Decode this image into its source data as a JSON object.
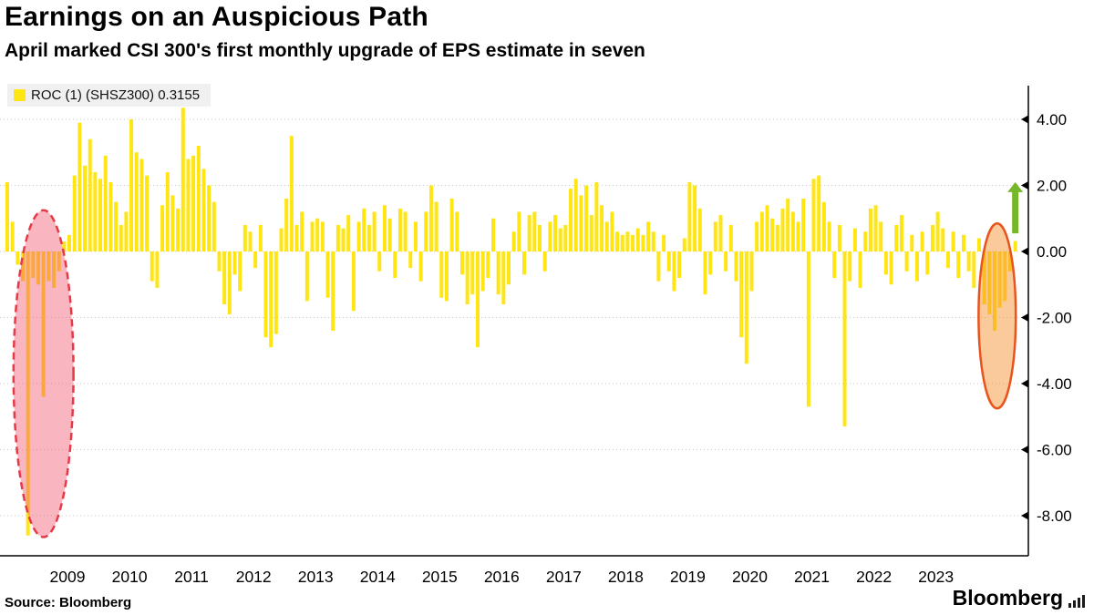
{
  "header": {
    "title": "Earnings on an Auspicious Path",
    "subtitle": "April marked CSI 300's first monthly upgrade of EPS estimate in seven"
  },
  "legend": {
    "label": "ROC (1) (SHSZ300) 0.3155"
  },
  "footer": {
    "source": "Source: Bloomberg",
    "brand": "Bloomberg"
  },
  "chart_data": {
    "type": "bar",
    "title": "Earnings on an Auspicious Path",
    "series_name": "ROC (1) (SHSZ300)",
    "frequency": "monthly",
    "start_month": "2008-01",
    "end_month": "2024-04",
    "last_value": 0.3155,
    "bar_color": "#ffe512",
    "grid": "dotted-horizontal",
    "legend_position": "top-left",
    "ylim": [
      -9.2,
      5.1
    ],
    "yticks": [
      4,
      2,
      0,
      -2,
      -4,
      -6,
      -8
    ],
    "ytick_labels": [
      "4.00",
      "2.00",
      "0.00",
      "-2.00",
      "-4.00",
      "-6.00",
      "-8.00"
    ],
    "year_labels": [
      "2009",
      "2010",
      "2011",
      "2012",
      "2013",
      "2014",
      "2015",
      "2016",
      "2017",
      "2018",
      "2019",
      "2020",
      "2021",
      "2022",
      "2023"
    ],
    "values": [
      2.1,
      0.9,
      -0.4,
      -0.9,
      -8.6,
      -0.8,
      -1.0,
      -4.4,
      -0.9,
      -1.1,
      -0.6,
      0.3,
      0.5,
      2.3,
      3.9,
      2.6,
      3.4,
      2.4,
      2.2,
      2.9,
      2.1,
      1.5,
      0.8,
      1.2,
      4.0,
      3.0,
      2.8,
      2.3,
      -0.9,
      -1.1,
      1.4,
      2.4,
      1.7,
      1.3,
      4.35,
      2.8,
      2.9,
      3.2,
      2.5,
      2.0,
      1.5,
      -0.6,
      -1.6,
      -1.9,
      -0.7,
      -1.2,
      0.8,
      0.6,
      -0.5,
      0.8,
      -2.6,
      -2.9,
      -2.5,
      0.7,
      1.6,
      3.5,
      0.8,
      1.2,
      -1.5,
      0.9,
      1.0,
      0.9,
      -1.4,
      -2.4,
      0.8,
      0.7,
      1.1,
      -1.8,
      0.9,
      1.3,
      0.8,
      1.2,
      -0.6,
      1.4,
      1.0,
      -0.8,
      1.3,
      1.2,
      -0.5,
      0.9,
      -0.9,
      1.2,
      2.0,
      1.5,
      -1.4,
      -1.5,
      1.6,
      1.2,
      -0.7,
      -1.6,
      -1.3,
      -2.9,
      -1.2,
      -0.8,
      1.0,
      -1.3,
      -1.6,
      -1.0,
      0.6,
      1.2,
      -0.7,
      1.1,
      1.2,
      0.8,
      -0.6,
      0.9,
      1.1,
      0.7,
      0.8,
      1.9,
      2.2,
      1.7,
      2.0,
      1.1,
      2.1,
      1.4,
      0.9,
      1.2,
      0.6,
      0.5,
      0.6,
      0.5,
      0.7,
      0.5,
      0.9,
      0.6,
      -0.9,
      0.5,
      -0.6,
      -1.2,
      -0.8,
      0.4,
      2.1,
      2.0,
      1.3,
      -1.3,
      -0.7,
      0.9,
      1.1,
      -0.6,
      0.8,
      -0.9,
      -2.6,
      -3.4,
      -1.2,
      0.9,
      1.2,
      1.4,
      1.0,
      0.8,
      1.3,
      1.6,
      1.2,
      0.9,
      1.6,
      -4.7,
      2.2,
      2.3,
      1.5,
      0.9,
      -0.8,
      0.8,
      -5.3,
      -0.9,
      0.7,
      -1.1,
      0.6,
      1.3,
      1.4,
      0.9,
      -0.7,
      -1.0,
      0.8,
      1.1,
      -0.6,
      0.5,
      -0.9,
      0.6,
      -0.7,
      0.8,
      1.2,
      0.7,
      -0.5,
      0.6,
      -0.8,
      0.5,
      -0.6,
      -1.1,
      0.4,
      -1.6,
      -1.9,
      -2.4,
      -1.7,
      -1.5,
      -0.6,
      0.3155
    ],
    "annotations": {
      "crisis_ellipse": {
        "type": "ellipse",
        "style": "dashed",
        "color": "#e63946",
        "fill": "rgba(244,94,115,0.45)",
        "center_month_index": 7,
        "x_radius_months": 5.8,
        "center_value": -3.7,
        "value_radius": 4.95
      },
      "recent_ellipse": {
        "type": "ellipse",
        "style": "solid",
        "color": "#e8541e",
        "fill": "rgba(248,150,54,0.5)",
        "center_month_index": 191.5,
        "x_radius_months": 3.6,
        "center_value": -1.95,
        "value_radius": 2.8
      },
      "up_arrow": {
        "type": "arrow",
        "color": "#76b82a",
        "month_index": 195,
        "from_value": 0.55,
        "to_value": 2.1
      }
    }
  }
}
